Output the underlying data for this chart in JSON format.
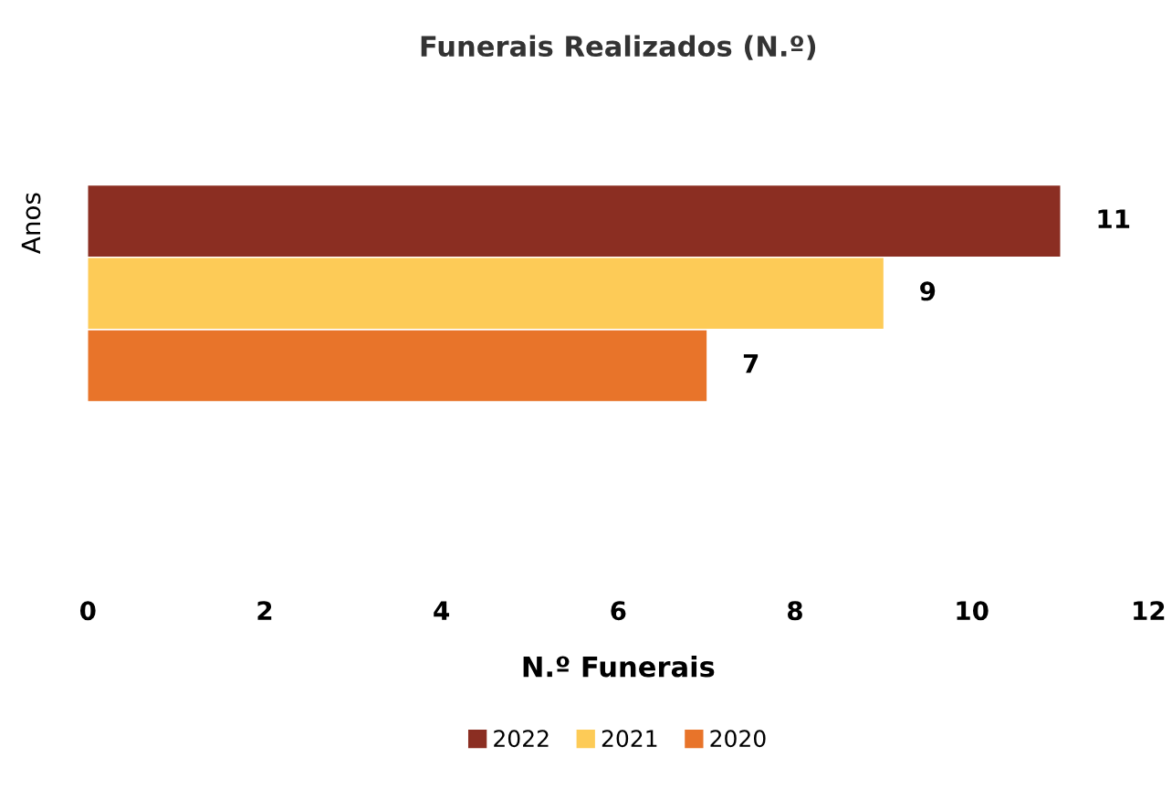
{
  "chart_data": {
    "type": "bar",
    "orientation": "horizontal",
    "title": "Funerais Realizados (N.º)",
    "xlabel": "N.º Funerais",
    "ylabel": "Anos",
    "categories": [
      null
    ],
    "series": [
      {
        "name": "2022",
        "color": "#8b2e22",
        "values": [
          11
        ]
      },
      {
        "name": "2021",
        "color": "#fdcb57",
        "values": [
          9
        ]
      },
      {
        "name": "2020",
        "color": "#e8742a",
        "values": [
          7
        ]
      }
    ],
    "xlim": [
      0,
      12
    ],
    "xticks": [
      0,
      2,
      4,
      6,
      8,
      10,
      12
    ],
    "data_labels": true,
    "grid": false,
    "legend": "bottom"
  }
}
